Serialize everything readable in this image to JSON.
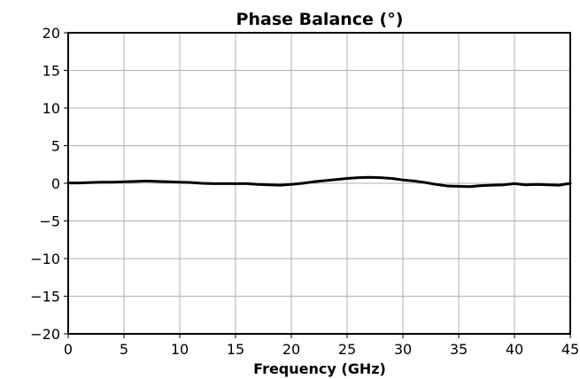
{
  "chart_data": {
    "type": "line",
    "title": "Phase Balance (°)",
    "xlabel": "Frequency (GHz)",
    "ylabel": "",
    "xlim": [
      0,
      45
    ],
    "ylim": [
      -20,
      20
    ],
    "x_ticks": [
      0,
      5,
      10,
      15,
      20,
      25,
      30,
      35,
      40,
      45
    ],
    "x_tick_labels": [
      "0",
      "5",
      "10",
      "15",
      "20",
      "25",
      "30",
      "35",
      "40",
      "45"
    ],
    "y_ticks": [
      20,
      15,
      10,
      5,
      0,
      -5,
      -10,
      -15,
      -20
    ],
    "y_tick_labels": [
      "20",
      "15",
      "10",
      "5",
      "0",
      "−5",
      "−10",
      "−15",
      "−20"
    ],
    "grid": true,
    "series": [
      {
        "color": "#000000",
        "x": [
          0,
          1,
          2,
          3,
          4,
          5,
          6,
          7,
          8,
          9,
          10,
          11,
          12,
          13,
          14,
          15,
          16,
          17,
          18,
          19,
          20,
          21,
          22,
          23,
          24,
          25,
          26,
          27,
          28,
          29,
          30,
          31,
          32,
          33,
          34,
          35,
          36,
          37,
          38,
          39,
          40,
          41,
          42,
          43,
          44,
          45
        ],
        "y": [
          0.05,
          0.05,
          0.1,
          0.15,
          0.15,
          0.2,
          0.25,
          0.3,
          0.25,
          0.2,
          0.15,
          0.1,
          0.0,
          -0.05,
          -0.05,
          -0.05,
          -0.05,
          -0.15,
          -0.2,
          -0.25,
          -0.15,
          0.0,
          0.2,
          0.35,
          0.5,
          0.65,
          0.75,
          0.8,
          0.75,
          0.65,
          0.45,
          0.3,
          0.1,
          -0.15,
          -0.35,
          -0.4,
          -0.45,
          -0.3,
          -0.25,
          -0.2,
          -0.05,
          -0.2,
          -0.15,
          -0.2,
          -0.25,
          0.0
        ]
      }
    ]
  }
}
